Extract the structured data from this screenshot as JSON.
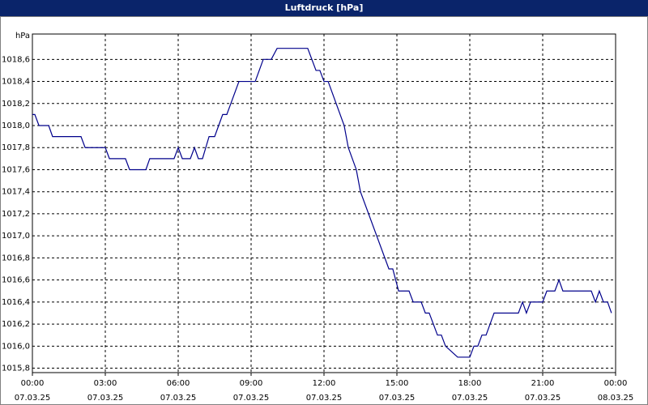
{
  "chart_data": {
    "type": "line",
    "title": "Luftdruck [hPa]",
    "y_unit": "hPa",
    "x": [
      0,
      0.1,
      0.27,
      0.67,
      0.83,
      2,
      2.17,
      3,
      3.17,
      3.83,
      4,
      4.67,
      4.83,
      5.83,
      6,
      6.17,
      6.5,
      6.67,
      6.83,
      7,
      7.27,
      7.5,
      7.83,
      8,
      8.5,
      9.17,
      9.5,
      9.83,
      10.07,
      11.33,
      11.67,
      11.83,
      12,
      12.17,
      12.83,
      13,
      13.33,
      13.5,
      14.67,
      14.83,
      15.07,
      15.5,
      15.67,
      16,
      16.17,
      16.33,
      16.5,
      16.67,
      16.83,
      17,
      17.5,
      18,
      18.17,
      18.33,
      18.5,
      18.67,
      19,
      20,
      20.17,
      20.33,
      20.5,
      21,
      21.17,
      21.5,
      21.67,
      21.83,
      23,
      23.17,
      23.33,
      23.5,
      23.67,
      23.83
    ],
    "series": [
      {
        "name": "Luftdruck",
        "color": "#00008b",
        "values": [
          1018.1,
          1018.1,
          1018.0,
          1018.0,
          1017.9,
          1017.9,
          1017.8,
          1017.8,
          1017.7,
          1017.7,
          1017.6,
          1017.6,
          1017.7,
          1017.7,
          1017.8,
          1017.7,
          1017.7,
          1017.8,
          1017.7,
          1017.7,
          1017.9,
          1017.9,
          1018.1,
          1018.1,
          1018.4,
          1018.4,
          1018.6,
          1018.6,
          1018.7,
          1018.7,
          1018.5,
          1018.5,
          1018.4,
          1018.4,
          1018.0,
          1017.8,
          1017.6,
          1017.4,
          1016.7,
          1016.7,
          1016.5,
          1016.5,
          1016.4,
          1016.4,
          1016.3,
          1016.3,
          1016.2,
          1016.1,
          1016.1,
          1016.0,
          1015.9,
          1015.9,
          1016.0,
          1016.0,
          1016.1,
          1016.1,
          1016.3,
          1016.3,
          1016.4,
          1016.3,
          1016.4,
          1016.4,
          1016.5,
          1016.5,
          1016.6,
          1016.5,
          1016.5,
          1016.4,
          1016.5,
          1016.4,
          1016.4,
          1016.3
        ]
      }
    ],
    "xlim": [
      0,
      24
    ],
    "xticks": [
      {
        "value": 0,
        "label": "00:00 07.03.25"
      },
      {
        "value": 3,
        "label": "03:00 07.03.25"
      },
      {
        "value": 6,
        "label": "06:00 07.03.25"
      },
      {
        "value": 9,
        "label": "09:00 07.03.25"
      },
      {
        "value": 12,
        "label": "12:00 07.03.25"
      },
      {
        "value": 15,
        "label": "15:00 07.03.25"
      },
      {
        "value": 18,
        "label": "18:00 07.03.25"
      },
      {
        "value": 21,
        "label": "21:00 07.03.25"
      },
      {
        "value": 24,
        "label": "00:00 08.03.25"
      }
    ],
    "ylim": [
      1015.76,
      1018.83
    ],
    "yticks": [
      {
        "value": 1015.8,
        "label": "1015,8"
      },
      {
        "value": 1016.0,
        "label": "1016,0"
      },
      {
        "value": 1016.2,
        "label": "1016,2"
      },
      {
        "value": 1016.4,
        "label": "1016,4"
      },
      {
        "value": 1016.6,
        "label": "1016,6"
      },
      {
        "value": 1016.8,
        "label": "1016,8"
      },
      {
        "value": 1017.0,
        "label": "1017,0"
      },
      {
        "value": 1017.2,
        "label": "1017,2"
      },
      {
        "value": 1017.4,
        "label": "1017,4"
      },
      {
        "value": 1017.6,
        "label": "1017,6"
      },
      {
        "value": 1017.8,
        "label": "1017,8"
      },
      {
        "value": 1018.0,
        "label": "1018,0"
      },
      {
        "value": 1018.2,
        "label": "1018,2"
      },
      {
        "value": 1018.4,
        "label": "1018,4"
      },
      {
        "value": 1018.6,
        "label": "1018,6"
      }
    ],
    "grid": true
  }
}
